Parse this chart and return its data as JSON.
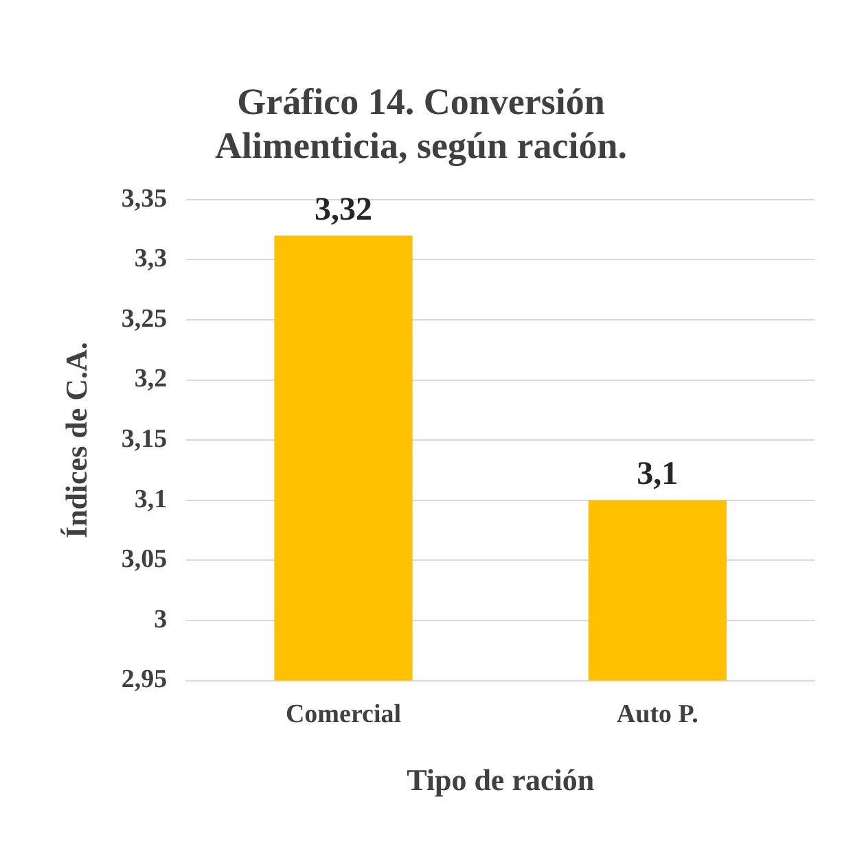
{
  "chart_data": {
    "type": "bar",
    "title": "Gráfico 14. Conversión Alimenticia, según ración.",
    "xlabel": "Tipo de ración",
    "ylabel": "Índices de C.A.",
    "categories": [
      "Comercial",
      "Auto P."
    ],
    "values": [
      3.32,
      3.1
    ],
    "color": "#ffc000",
    "value_labels": [
      "3,32",
      "3,1"
    ],
    "ylim": [
      2.95,
      3.35
    ],
    "yticks": [
      {
        "value": 2.95,
        "label": "2,95"
      },
      3,
      {
        "value": 3.05,
        "label": "3,05"
      },
      {
        "value": 3.1,
        "label": "3,1"
      },
      {
        "value": 3.15,
        "label": "3,15"
      },
      {
        "value": 3.2,
        "label": "3,2"
      },
      {
        "value": 3.25,
        "label": "3,25"
      },
      {
        "value": 3.3,
        "label": "3,3"
      },
      {
        "value": 3.35,
        "label": "3,35"
      }
    ],
    "grid": "y",
    "legend": false
  }
}
